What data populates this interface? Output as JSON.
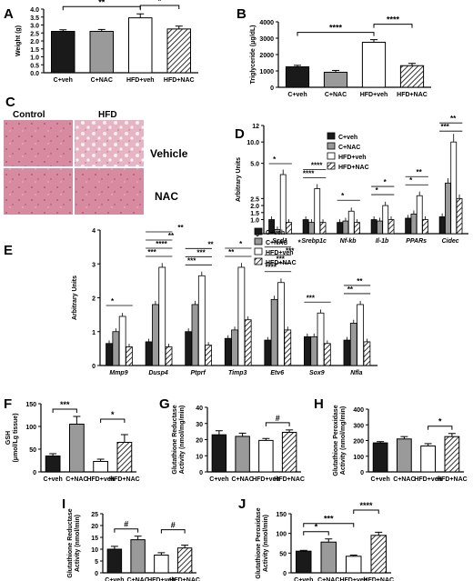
{
  "chart_data": [
    {
      "panel": "A",
      "type": "bar",
      "categories": [
        "C+veh",
        "C+NAC",
        "HFD+veh",
        "HFD+NAC"
      ],
      "values": [
        2.6,
        2.6,
        3.45,
        2.75
      ],
      "errors": [
        0.1,
        0.12,
        0.25,
        0.18
      ],
      "ylabel": "Weight (g)",
      "ylim": [
        0,
        4.0
      ],
      "yticks": [
        "0.0",
        "0.5",
        "1.0",
        "1.5",
        "2.0",
        "2.5",
        "3.0",
        "3.5",
        "4.0"
      ],
      "significance": [
        {
          "from": 0,
          "to": 2,
          "label": "**"
        },
        {
          "from": 2,
          "to": 3,
          "label": "*"
        }
      ]
    },
    {
      "panel": "B",
      "type": "bar",
      "categories": [
        "C+veh",
        "C+NAC",
        "HFD+veh",
        "HFD+NAC"
      ],
      "values": [
        1250,
        920,
        2750,
        1320
      ],
      "errors": [
        90,
        110,
        160,
        140
      ],
      "ylabel": "Triglyceride (μg/dL)",
      "ylim": [
        0,
        4000
      ],
      "yticks": [
        "0",
        "1000",
        "2000",
        "3000",
        "4000"
      ],
      "significance": [
        {
          "from": 0,
          "to": 2,
          "label": "****"
        },
        {
          "from": 2,
          "to": 3,
          "label": "****"
        }
      ]
    },
    {
      "panel": "D",
      "type": "bar",
      "categories": [
        "Scd1",
        "Srebp1c",
        "Nf-kb",
        "Il-1b",
        "PPARs",
        "Cidec"
      ],
      "series": [
        {
          "name": "C+veh",
          "values": [
            1.0,
            1.0,
            0.8,
            1.0,
            1.1,
            1.2
          ]
        },
        {
          "name": "C+NAC",
          "values": [
            0.3,
            0.8,
            0.9,
            0.9,
            1.4,
            3.6
          ]
        },
        {
          "name": "HFD+veh",
          "values": [
            4.2,
            3.2,
            1.6,
            2.0,
            2.7,
            10.0
          ]
        },
        {
          "name": "HFD+NAC",
          "values": [
            0.8,
            0.8,
            0.8,
            1.0,
            1.0,
            2.5
          ]
        }
      ],
      "ylabel": "Arbitrary Units",
      "ylim": [
        0,
        12
      ],
      "axis_break": [
        6,
        10
      ],
      "yticks": [
        "0",
        "1.0",
        "1.5",
        "2.0",
        "2.5",
        "5.0",
        "10.0",
        "12"
      ],
      "significance": [
        {
          "group": 0,
          "labels": [
            "*"
          ]
        },
        {
          "group": 1,
          "labels": [
            "****",
            "****"
          ]
        },
        {
          "group": 2,
          "labels": [
            "*"
          ]
        },
        {
          "group": 3,
          "labels": [
            "*",
            "*"
          ]
        },
        {
          "group": 4,
          "labels": [
            "*",
            "**"
          ]
        },
        {
          "group": 5,
          "labels": [
            "***",
            "**"
          ]
        }
      ]
    },
    {
      "panel": "E",
      "type": "bar",
      "categories": [
        "Mmp9",
        "Dusp4",
        "Ptprf",
        "Timp3",
        "Etv6",
        "Sox9",
        "Nfla"
      ],
      "series": [
        {
          "name": "C+veh",
          "values": [
            0.65,
            0.7,
            1.0,
            0.8,
            0.75,
            0.85,
            0.75
          ]
        },
        {
          "name": "C+NAC",
          "values": [
            1.0,
            1.8,
            1.8,
            1.05,
            1.95,
            0.85,
            1.25
          ]
        },
        {
          "name": "HFD+veh",
          "values": [
            1.45,
            2.9,
            2.65,
            2.9,
            2.45,
            1.55,
            1.8
          ]
        },
        {
          "name": "HFD+NAC",
          "values": [
            0.55,
            0.55,
            0.6,
            1.35,
            1.05,
            0.65,
            0.7
          ]
        }
      ],
      "ylabel": "Arbitrary Units",
      "ylim": [
        0,
        4
      ],
      "yticks": [
        "0",
        "1",
        "2",
        "3",
        "4"
      ],
      "significance": [
        {
          "group": 0,
          "labels": [
            "*"
          ]
        },
        {
          "group": 1,
          "labels": [
            "***",
            "****",
            "**",
            "**"
          ]
        },
        {
          "group": 2,
          "labels": [
            "***",
            "***",
            "**"
          ]
        },
        {
          "group": 3,
          "labels": [
            "**",
            "*"
          ]
        },
        {
          "group": 4,
          "labels": [
            "****",
            "***",
            "***",
            "*"
          ]
        },
        {
          "group": 5,
          "labels": [
            "***"
          ]
        },
        {
          "group": 6,
          "labels": [
            "**",
            "**"
          ]
        }
      ]
    },
    {
      "panel": "F",
      "type": "bar",
      "categories": [
        "C+veh",
        "C+NAC",
        "HFD+veh",
        "HFD+NAC"
      ],
      "values": [
        35,
        105,
        23,
        65
      ],
      "errors": [
        5,
        17,
        5,
        17
      ],
      "ylabel": "GSH\n(μmol/Lg tissue)",
      "ylim": [
        0,
        150
      ],
      "yticks": [
        "0",
        "50",
        "100",
        "150"
      ],
      "significance": [
        {
          "from": 0,
          "to": 1,
          "label": "***"
        },
        {
          "from": 2,
          "to": 3,
          "label": "*"
        }
      ]
    },
    {
      "panel": "G",
      "type": "bar",
      "categories": [
        "C+veh",
        "C+NAC",
        "HFD+veh",
        "HFD+NAC"
      ],
      "values": [
        23,
        22,
        19.5,
        24.5
      ],
      "errors": [
        2.5,
        2.0,
        1.2,
        1.5
      ],
      "ylabel": "Glutathione Reductase\nActivity (nmol/mg/min)",
      "ylim": [
        0,
        40
      ],
      "yticks": [
        "0",
        "10",
        "20",
        "30",
        "40"
      ],
      "significance": [
        {
          "from": 2,
          "to": 3,
          "label": "#"
        }
      ]
    },
    {
      "panel": "H",
      "type": "bar",
      "categories": [
        "C+veh",
        "C+NAC",
        "HFD+veh",
        "HFD+NAC"
      ],
      "values": [
        185,
        210,
        165,
        225
      ],
      "errors": [
        8,
        15,
        15,
        20
      ],
      "ylabel": "Glutathione Peroxidase\nActivity (nmol/mg/min)",
      "ylim": [
        0,
        400
      ],
      "yticks": [
        "0",
        "100",
        "200",
        "300",
        "400"
      ],
      "significance": [
        {
          "from": 2,
          "to": 3,
          "label": "*"
        }
      ]
    },
    {
      "panel": "I",
      "type": "bar",
      "categories": [
        "C+veh",
        "C+NAC",
        "HFD+veh",
        "HFD+NAC"
      ],
      "values": [
        10,
        14,
        7.5,
        10.5
      ],
      "errors": [
        1.2,
        1.5,
        1.0,
        1.2
      ],
      "ylabel": "Glutathione Reductase\nActivity (nmol/min)",
      "ylim": [
        0,
        25
      ],
      "yticks": [
        "0",
        "5",
        "10",
        "15",
        "20",
        "25"
      ],
      "significance": [
        {
          "from": 0,
          "to": 1,
          "label": "#"
        },
        {
          "from": 2,
          "to": 3,
          "label": "#"
        }
      ]
    },
    {
      "panel": "J",
      "type": "bar",
      "categories": [
        "C+veh",
        "C+NAC",
        "HFD+veh",
        "HFD+NAC"
      ],
      "values": [
        55,
        78,
        42,
        95
      ],
      "errors": [
        2,
        8,
        3,
        8
      ],
      "ylabel": "Glutathione Peroxidase\nActivity (nmol/min)",
      "ylim": [
        0,
        150
      ],
      "yticks": [
        "0",
        "50",
        "100",
        "150"
      ],
      "significance": [
        {
          "from": 0,
          "to": 1,
          "label": "*"
        },
        {
          "from": 0,
          "to": 2,
          "label": "***"
        },
        {
          "from": 2,
          "to": 3,
          "label": "****"
        }
      ]
    }
  ],
  "histology": {
    "panel": "C",
    "columns": [
      "Control",
      "HFD"
    ],
    "rows": [
      "Vehicle",
      "NAC"
    ]
  },
  "colors": {
    "C+veh": "#1a1a1a",
    "C+NAC": "#9a9a9a",
    "HFD+veh": "#ffffff",
    "HFD+NAC": "hatch",
    "tissue": "#d98aa0"
  }
}
